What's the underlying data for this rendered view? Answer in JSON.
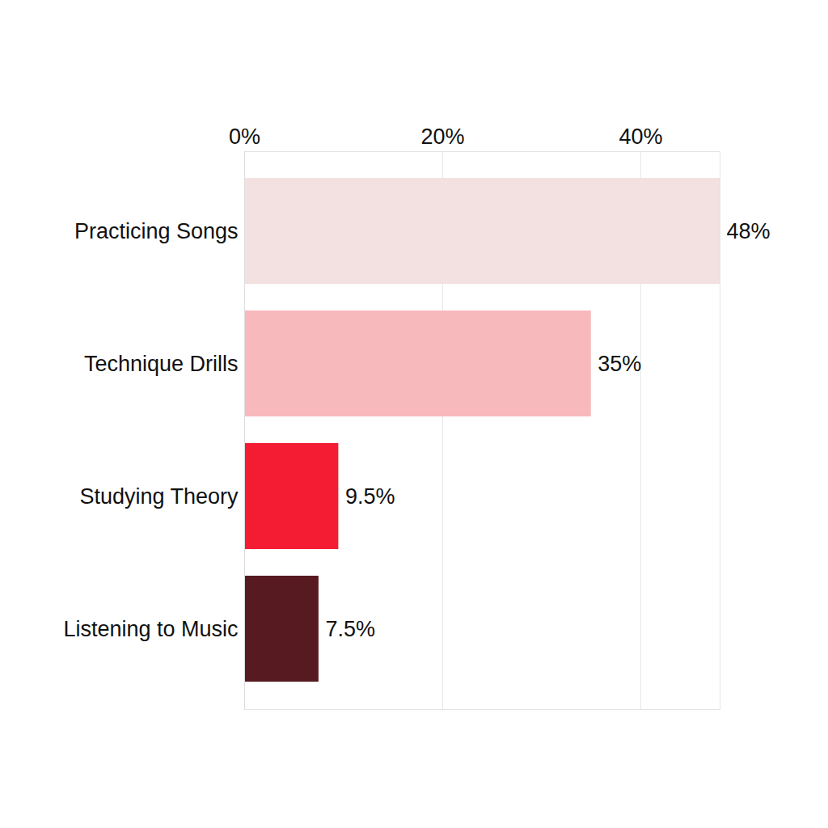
{
  "chart_data": {
    "type": "bar",
    "orientation": "horizontal",
    "categories": [
      "Practicing Songs",
      "Technique Drills",
      "Studying Theory",
      "Listening to Music"
    ],
    "values": [
      48,
      35,
      9.5,
      7.5
    ],
    "value_labels": [
      "48%",
      "35%",
      "9.5%",
      "7.5%"
    ],
    "colors": [
      "#f2e1e0",
      "#f8b9bd",
      "#f41c32",
      "#561a20"
    ],
    "xlim": [
      0,
      48
    ],
    "xticks": [
      {
        "value": 0,
        "label": "0%"
      },
      {
        "value": 20,
        "label": "20%"
      },
      {
        "value": 40,
        "label": "40%"
      }
    ],
    "grid": true,
    "data_labels": true
  }
}
